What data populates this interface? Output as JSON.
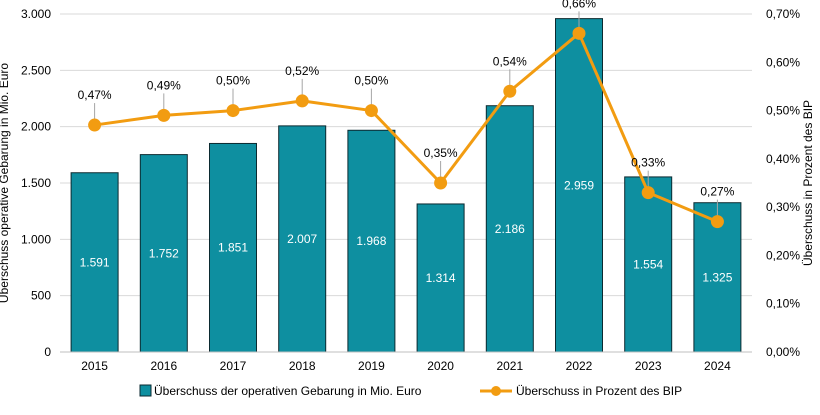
{
  "chart_data": {
    "type": "bar",
    "categories": [
      "2015",
      "2016",
      "2017",
      "2018",
      "2019",
      "2020",
      "2021",
      "2022",
      "2023",
      "2024"
    ],
    "series": [
      {
        "name": "Überschuss der operativen Gebarung in Mio. Euro",
        "type": "bar",
        "axis": "left",
        "values": [
          1591,
          1752,
          1851,
          2007,
          1968,
          1314,
          2186,
          2959,
          1554,
          1325
        ],
        "labels": [
          "1.591",
          "1.752",
          "1.851",
          "2.007",
          "1.968",
          "1.314",
          "2.186",
          "2.959",
          "1.554",
          "1.325"
        ],
        "color": "#0e8fa0"
      },
      {
        "name": "Überschuss in Prozent des BIP",
        "type": "line",
        "axis": "right",
        "values": [
          0.47,
          0.49,
          0.5,
          0.52,
          0.5,
          0.35,
          0.54,
          0.66,
          0.33,
          0.27
        ],
        "labels": [
          "0,47%",
          "0,49%",
          "0,50%",
          "0,52%",
          "0,50%",
          "0,35%",
          "0,54%",
          "0,66%",
          "0,33%",
          "0,27%"
        ],
        "color": "#f29c11"
      }
    ],
    "y_left": {
      "label": "Überschuss operative Gebarung in Mio. Euro",
      "ylim": [
        0,
        3000
      ],
      "ticks": [
        0,
        500,
        1000,
        1500,
        2000,
        2500,
        3000
      ],
      "tick_labels": [
        "0",
        "500",
        "1.000",
        "1.500",
        "2.000",
        "2.500",
        "3.000"
      ]
    },
    "y_right": {
      "label": "Überschuss in Prozent des BIP",
      "ylim": [
        0,
        0.7
      ],
      "ticks": [
        0,
        0.1,
        0.2,
        0.3,
        0.4,
        0.5,
        0.6,
        0.7
      ],
      "tick_labels": [
        "0,00%",
        "0,10%",
        "0,20%",
        "0,30%",
        "0,40%",
        "0,50%",
        "0,60%",
        "0,70%"
      ]
    },
    "grid": true,
    "legend": "bottom",
    "colors": {
      "bar": "#0e8fa0",
      "line": "#f29c11",
      "grid": "#d9d9d9",
      "text": "#000000"
    }
  }
}
